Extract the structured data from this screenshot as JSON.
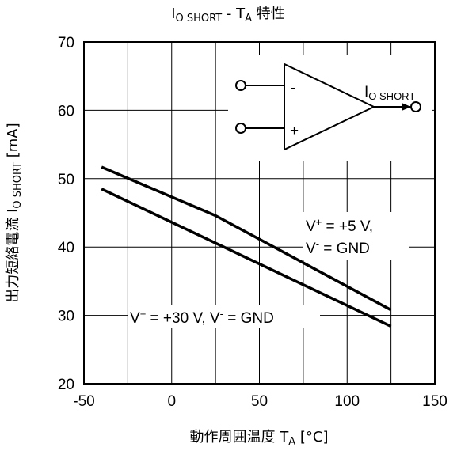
{
  "chart_data": {
    "type": "line",
    "title": {
      "main": "I",
      "main_sub": "O SHORT",
      "dash": " - T",
      "dash_sub": "A",
      "suffix": " 特性"
    },
    "xlabel": {
      "main": "動作周囲温度 T",
      "sub": "A",
      "suffix": " [°C]"
    },
    "ylabel": {
      "main": "出力短絡電流 I",
      "sub": "O SHORT",
      "suffix": " [mA]"
    },
    "xlim": [
      -50,
      150
    ],
    "ylim": [
      20,
      70
    ],
    "xticks": [
      "-50",
      "0",
      "50",
      "100",
      "150"
    ],
    "yticks": [
      "20",
      "30",
      "40",
      "50",
      "60",
      "70"
    ],
    "grid": true,
    "series": [
      {
        "name": {
          "v": "V",
          "sup": "+",
          "a": " = +5 V,",
          "v2": "V",
          "sup2": "-",
          "b": " = GND"
        },
        "x": [
          -40,
          25,
          125
        ],
        "y": [
          51.7,
          44.6,
          30.8
        ]
      },
      {
        "name": {
          "v": "V",
          "sup": "+",
          "a": " = +30 V, V",
          "sup2": "-",
          "b": " = GND"
        },
        "x": [
          -40,
          125
        ],
        "y": [
          48.5,
          28.4
        ]
      }
    ],
    "inset": {
      "minus": "-",
      "plus": "+",
      "out_main": "I",
      "out_sub": "O SHORT"
    }
  }
}
